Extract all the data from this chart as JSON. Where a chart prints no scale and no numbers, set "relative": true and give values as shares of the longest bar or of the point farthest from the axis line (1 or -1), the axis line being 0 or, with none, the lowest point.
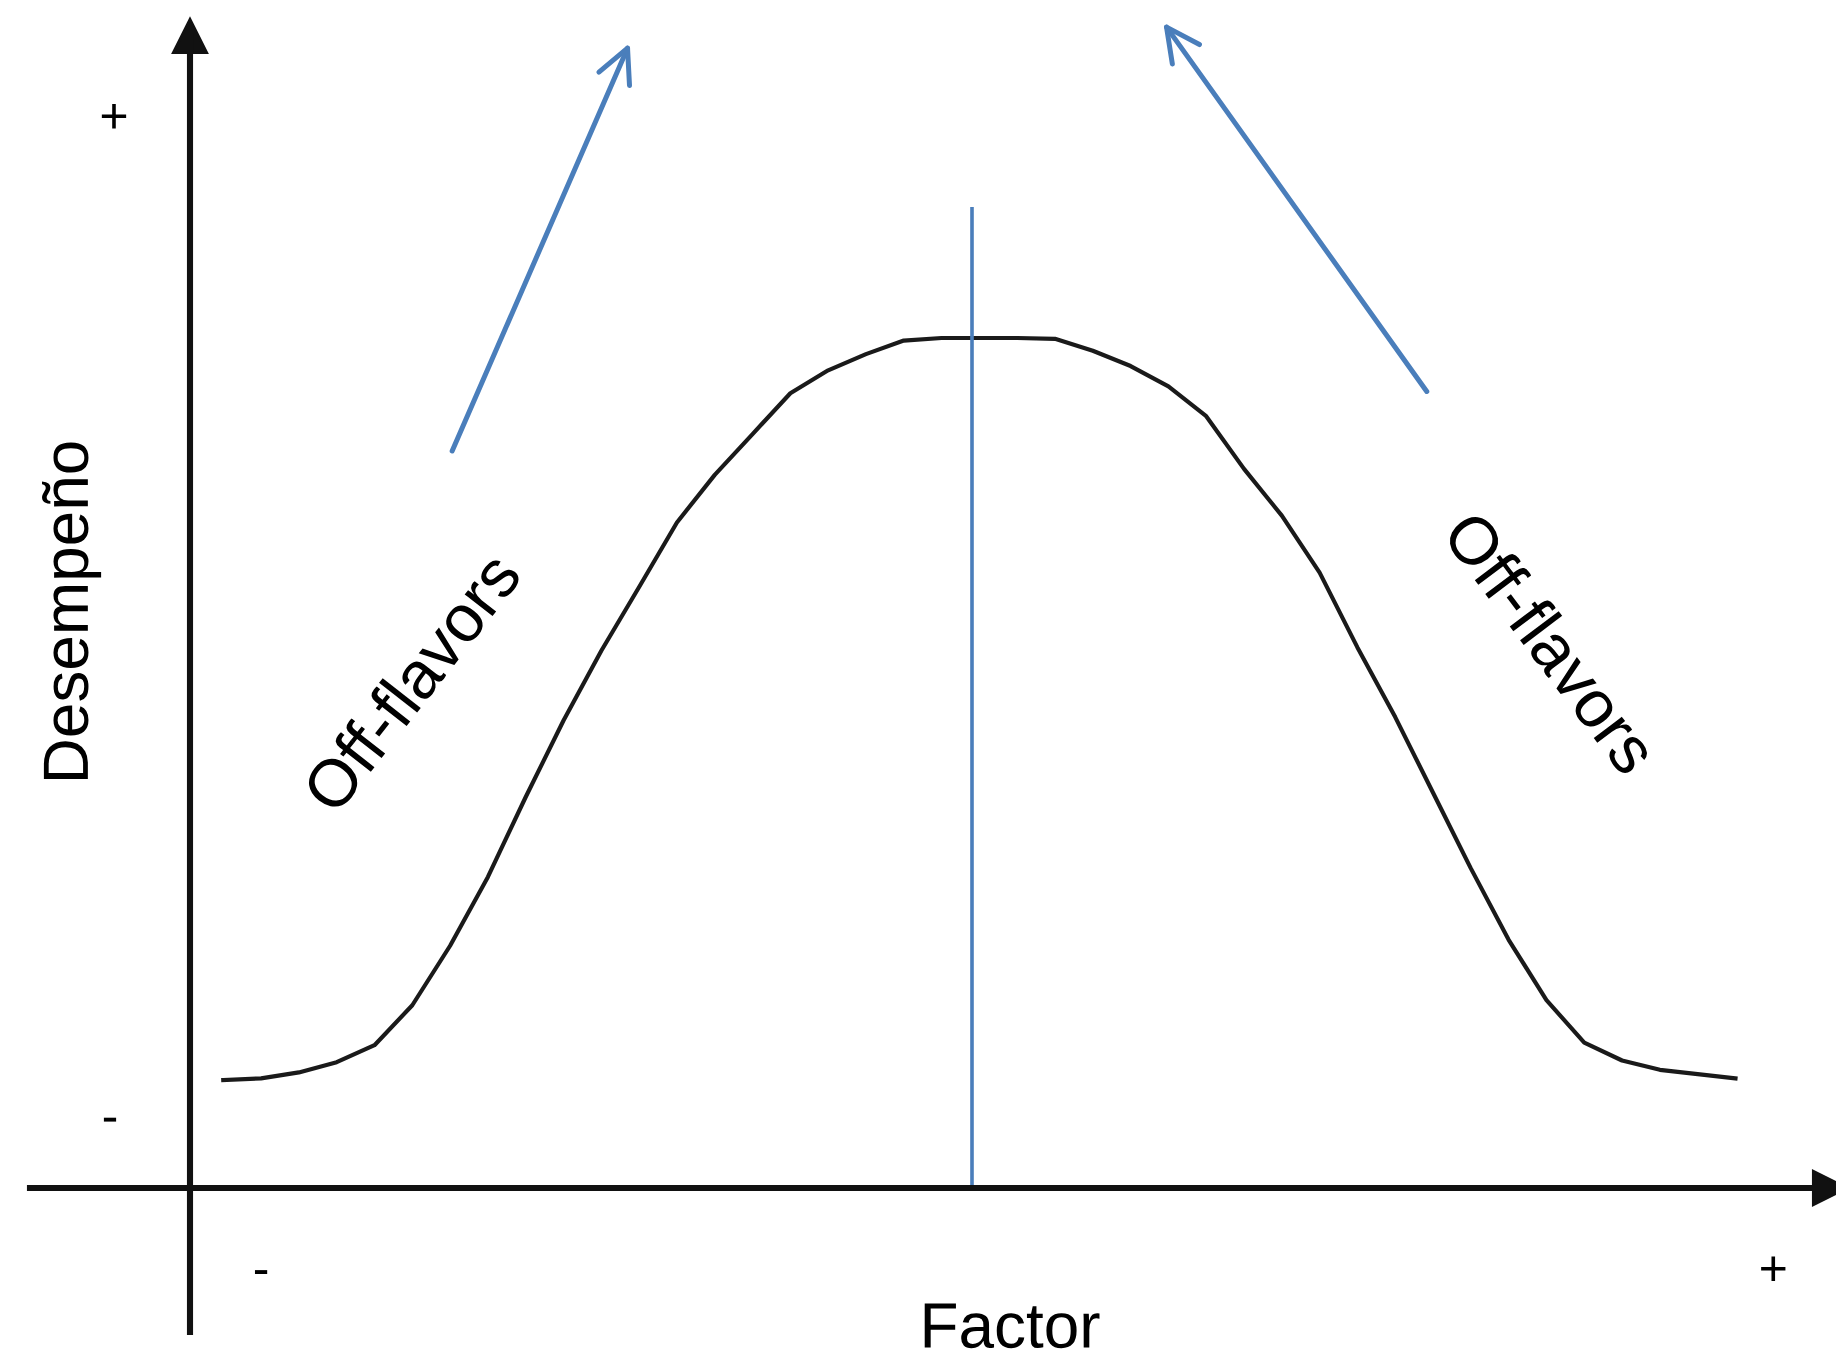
{
  "chart_data": {
    "type": "line",
    "relative": true,
    "xlabel": "Factor",
    "ylabel": "Desempeño",
    "categories": [
      null,
      "-",
      null,
      null,
      null,
      null,
      null,
      null,
      null,
      null,
      null,
      null,
      null,
      null,
      null,
      null,
      null,
      null,
      null,
      null,
      null,
      null,
      null,
      null,
      null,
      null,
      null,
      null,
      null,
      null,
      null,
      null,
      null,
      null,
      null,
      null,
      null,
      null,
      null,
      null,
      null,
      "+"
    ],
    "series": [
      {
        "color": "#1a1a1a",
        "values": [
          0.127,
          0.129,
          0.136,
          0.148,
          0.168,
          0.215,
          0.285,
          0.366,
          0.46,
          0.55,
          0.632,
          0.707,
          0.783,
          0.839,
          0.887,
          0.935,
          0.962,
          0.981,
          0.997,
          1.0,
          1.0,
          1.0,
          0.999,
          0.985,
          0.967,
          0.943,
          0.908,
          0.846,
          0.791,
          0.724,
          0.636,
          0.554,
          0.465,
          0.376,
          0.292,
          0.221,
          0.171,
          0.15,
          0.139,
          0.134,
          0.129,
          null
        ]
      }
    ],
    "annotations": [
      "+",
      "-",
      "Off-flavors",
      "Off-flavors"
    ],
    "grid": false,
    "marker": "none",
    "line_style": "solid"
  }
}
